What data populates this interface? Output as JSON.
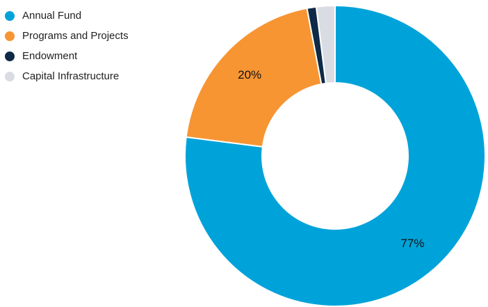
{
  "chart_data": {
    "type": "pie",
    "variant": "donut",
    "title": "",
    "legend_position": "top-left",
    "slices": [
      {
        "name": "Annual Fund",
        "value": 77,
        "color": "#00a3d9",
        "label": "77%"
      },
      {
        "name": "Programs and Projects",
        "value": 20,
        "color": "#f79533",
        "label": "20%"
      },
      {
        "name": "Endowment",
        "value": 1,
        "color": "#0e2a47",
        "label": ""
      },
      {
        "name": "Capital Infrastructure",
        "value": 2,
        "color": "#d9dde3",
        "label": ""
      }
    ]
  }
}
